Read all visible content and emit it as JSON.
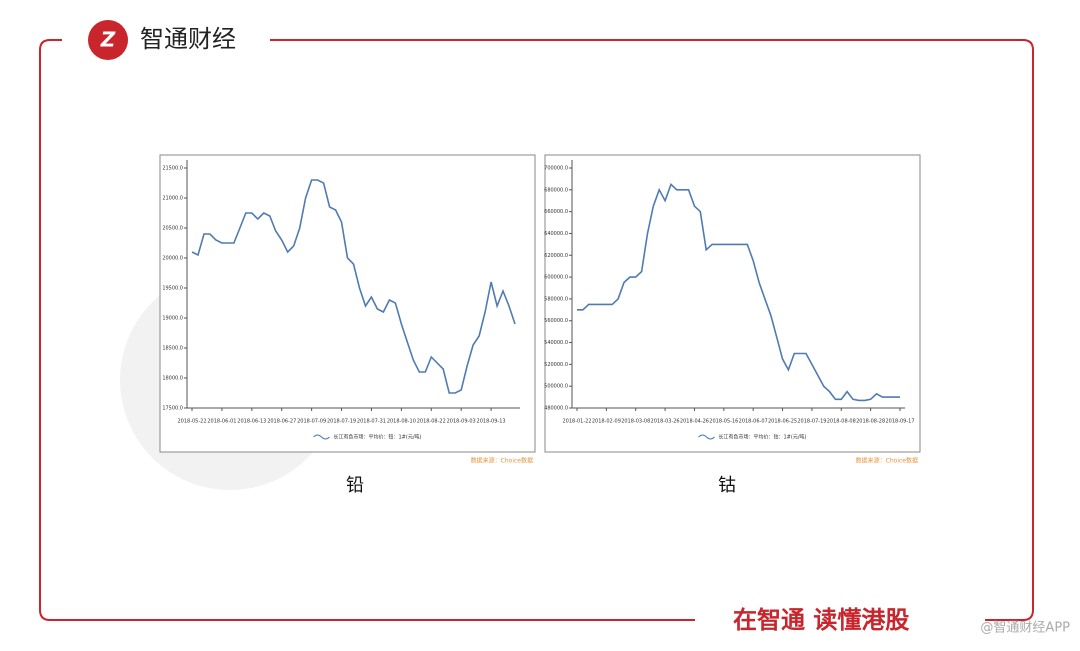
{
  "header": {
    "brand": "智通财经"
  },
  "footer": {
    "slogan": "在智通 读懂港股",
    "watermark": "@智通财经APP"
  },
  "chart_data": [
    {
      "type": "line",
      "title": "铅",
      "source": "数据来源：Choice数据",
      "categories": [
        "2018-05-22",
        null,
        null,
        null,
        null,
        "2018-06-01",
        null,
        null,
        null,
        null,
        "2018-06-13",
        null,
        null,
        null,
        null,
        "2018-06-27",
        null,
        null,
        null,
        null,
        "2018-07-09",
        null,
        null,
        null,
        null,
        "2018-07-19",
        null,
        null,
        null,
        null,
        "2018-07-31",
        null,
        null,
        null,
        null,
        "2018-08-10",
        null,
        null,
        null,
        null,
        "2018-08-22",
        null,
        null,
        null,
        null,
        "2018-09-03",
        null,
        null,
        null,
        null,
        "2018-09-13",
        null,
        null,
        null,
        null
      ],
      "series": [
        {
          "name": "长江有色市场：平均价：铅：1#(元/吨)",
          "color": "#4f7bb3",
          "values": [
            20100,
            20050,
            20400,
            20400,
            20300,
            20250,
            20250,
            20250,
            20500,
            20750,
            20750,
            20650,
            20750,
            20700,
            20450,
            20300,
            20100,
            20200,
            20500,
            21000,
            21300,
            21300,
            21250,
            20850,
            20800,
            20600,
            20000,
            19900,
            19500,
            19200,
            19350,
            19150,
            19100,
            19300,
            19250,
            18900,
            18600,
            18300,
            18100,
            18100,
            18350,
            18250,
            18150,
            17750,
            17750,
            17800,
            18200,
            18550,
            18700,
            19100,
            19600,
            19200,
            19450,
            19200,
            18900
          ]
        }
      ],
      "ylim": [
        17500,
        21500
      ],
      "yticks": [
        {
          "value": 17500,
          "label": "17500.0"
        },
        {
          "value": 18000,
          "label": "18000.0"
        },
        {
          "value": 18500,
          "label": "18500.0"
        },
        {
          "value": 19000,
          "label": "19000.0"
        },
        {
          "value": 19500,
          "label": "19500.0"
        },
        {
          "value": 20000,
          "label": "20000.0"
        },
        {
          "value": 20500,
          "label": "20500.0"
        },
        {
          "value": 21000,
          "label": "21000.0"
        },
        {
          "value": 21500,
          "label": "21500.0"
        }
      ]
    },
    {
      "type": "line",
      "title": "钴",
      "source": "数据来源：Choice数据",
      "categories": [
        "2018-01-22",
        null,
        null,
        null,
        null,
        "2018-02-09",
        null,
        null,
        null,
        null,
        "2018-03-08",
        null,
        null,
        null,
        null,
        "2018-03-26",
        null,
        null,
        null,
        null,
        "2018-04-26",
        null,
        null,
        null,
        null,
        "2018-05-16",
        null,
        null,
        null,
        null,
        "2018-06-07",
        null,
        null,
        null,
        null,
        "2018-06-25",
        null,
        null,
        null,
        null,
        "2018-07-19",
        null,
        null,
        null,
        null,
        "2018-08-08",
        null,
        null,
        null,
        null,
        "2018-08-28",
        null,
        null,
        null,
        null,
        "2018-09-17"
      ],
      "series": [
        {
          "name": "长江有色市场：平均价：钴：1#(元/吨)",
          "color": "#4f7bb3",
          "values": [
            570000,
            570000,
            575000,
            575000,
            575000,
            575000,
            575000,
            580000,
            595000,
            600000,
            600000,
            605000,
            640000,
            665000,
            680000,
            670000,
            685000,
            680000,
            680000,
            680000,
            665000,
            660000,
            625000,
            630000,
            630000,
            630000,
            630000,
            630000,
            630000,
            630000,
            615000,
            595000,
            580000,
            565000,
            545000,
            525000,
            515000,
            530000,
            530000,
            530000,
            520000,
            510000,
            500000,
            495000,
            488000,
            488000,
            495000,
            488000,
            487000,
            487000,
            488000,
            493000,
            490000,
            490000,
            490000,
            490000
          ]
        }
      ],
      "ylim": [
        480000,
        700000
      ],
      "yticks": [
        {
          "value": 480000,
          "label": "480000.0"
        },
        {
          "value": 500000,
          "label": "500000.0"
        },
        {
          "value": 520000,
          "label": "520000.0"
        },
        {
          "value": 540000,
          "label": "540000.0"
        },
        {
          "value": 560000,
          "label": "560000.0"
        },
        {
          "value": 580000,
          "label": "580000.0"
        },
        {
          "value": 600000,
          "label": "600000.0"
        },
        {
          "value": 620000,
          "label": "620000.0"
        },
        {
          "value": 640000,
          "label": "640000.0"
        },
        {
          "value": 660000,
          "label": "660000.0"
        },
        {
          "value": 680000,
          "label": "680000.0"
        },
        {
          "value": 700000,
          "label": "700000.0"
        }
      ]
    }
  ]
}
